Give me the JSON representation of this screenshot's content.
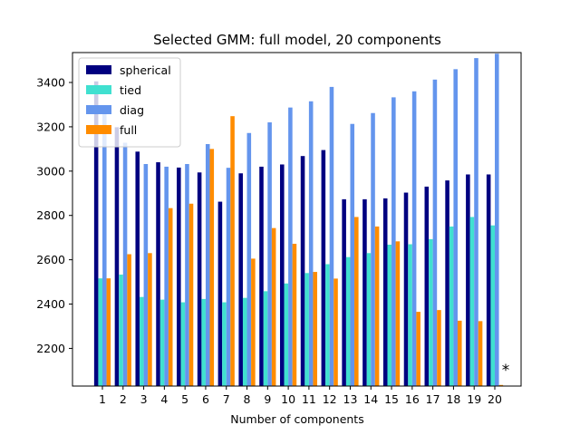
{
  "chart_data": {
    "type": "bar",
    "title": "Selected GMM: full model, 20 components",
    "xlabel": "Number of components",
    "ylabel": "",
    "categories": [
      "1",
      "2",
      "3",
      "4",
      "5",
      "6",
      "7",
      "8",
      "9",
      "10",
      "11",
      "12",
      "13",
      "14",
      "15",
      "16",
      "17",
      "18",
      "19",
      "20"
    ],
    "ylim": [
      2030,
      3535
    ],
    "yticks": [
      2200,
      2400,
      2600,
      2800,
      3000,
      3200,
      3400
    ],
    "grid": false,
    "legend_position": "top-left",
    "series": [
      {
        "name": "spherical",
        "color": "#000080",
        "values": [
          3405,
          3198,
          3088,
          3040,
          3016,
          2994,
          2862,
          2990,
          3020,
          3030,
          3068,
          3095,
          2873,
          2873,
          2877,
          2903,
          2930,
          2958,
          2985,
          2985
        ]
      },
      {
        "name": "tied",
        "color": "#40e0d0",
        "values": [
          2516,
          2533,
          2432,
          2420,
          2408,
          2423,
          2408,
          2428,
          2458,
          2493,
          2540,
          2580,
          2612,
          2630,
          2668,
          2670,
          2693,
          2750,
          2793,
          2755
        ]
      },
      {
        "name": "diag",
        "color": "#6495ed",
        "values": [
          3290,
          3128,
          3032,
          3020,
          3032,
          3122,
          3015,
          3172,
          3220,
          3287,
          3315,
          3380,
          3213,
          3262,
          3333,
          3360,
          3413,
          3460,
          3510,
          3530
        ]
      },
      {
        "name": "full",
        "color": "#ff8c00",
        "values": [
          2516,
          2625,
          2630,
          2833,
          2853,
          3100,
          3248,
          2605,
          2743,
          2672,
          2545,
          2515,
          2793,
          2750,
          2683,
          2365,
          2373,
          2325,
          2323,
          2035
        ]
      }
    ],
    "annotations": [
      {
        "text": "*",
        "category": "20"
      }
    ]
  }
}
